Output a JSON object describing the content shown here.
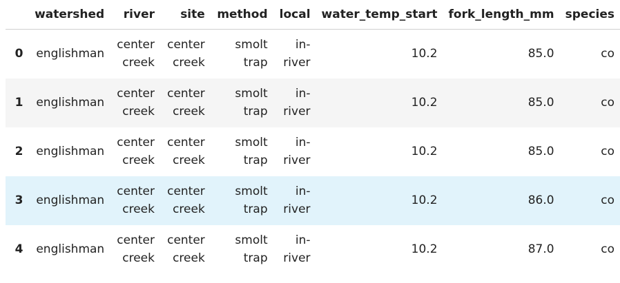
{
  "table": {
    "index_header": "",
    "columns": [
      "watershed",
      "river",
      "site",
      "method",
      "local",
      "water_temp_start",
      "fork_length_mm",
      "species"
    ],
    "rows": [
      {
        "index": "0",
        "watershed": "englishman",
        "river": "center creek",
        "site": "center creek",
        "method": "smolt trap",
        "local": "in-river",
        "water_temp_start": "10.2",
        "fork_length_mm": "85.0",
        "species": "co"
      },
      {
        "index": "1",
        "watershed": "englishman",
        "river": "center creek",
        "site": "center creek",
        "method": "smolt trap",
        "local": "in-river",
        "water_temp_start": "10.2",
        "fork_length_mm": "85.0",
        "species": "co"
      },
      {
        "index": "2",
        "watershed": "englishman",
        "river": "center creek",
        "site": "center creek",
        "method": "smolt trap",
        "local": "in-river",
        "water_temp_start": "10.2",
        "fork_length_mm": "85.0",
        "species": "co"
      },
      {
        "index": "3",
        "watershed": "englishman",
        "river": "center creek",
        "site": "center creek",
        "method": "smolt trap",
        "local": "in-river",
        "water_temp_start": "10.2",
        "fork_length_mm": "86.0",
        "species": "co"
      },
      {
        "index": "4",
        "watershed": "englishman",
        "river": "center creek",
        "site": "center creek",
        "method": "smolt trap",
        "local": "in-river",
        "water_temp_start": "10.2",
        "fork_length_mm": "87.0",
        "species": "co"
      }
    ]
  },
  "colors": {
    "row_stripe": "#f5f5f5",
    "row_hover": "#e1f3fb",
    "header_border": "#d0d0d0",
    "text": "#222222"
  }
}
